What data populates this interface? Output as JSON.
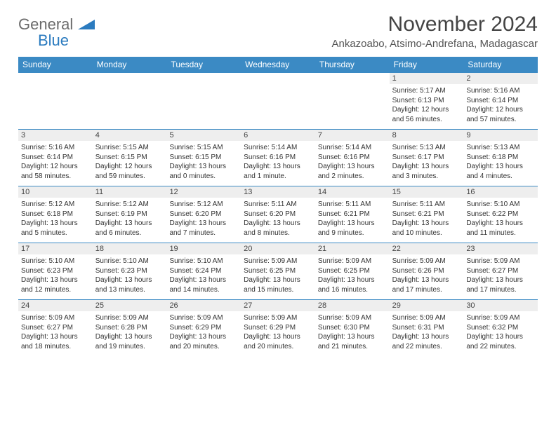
{
  "logo": {
    "text1": "General",
    "text2": "Blue"
  },
  "title": "November 2024",
  "location": "Ankazoabo, Atsimo-Andrefana, Madagascar",
  "weekdays": [
    "Sunday",
    "Monday",
    "Tuesday",
    "Wednesday",
    "Thursday",
    "Friday",
    "Saturday"
  ],
  "header_bg": "#3b8ac4",
  "weeks": [
    [
      null,
      null,
      null,
      null,
      null,
      {
        "n": "1",
        "sr": "5:17 AM",
        "ss": "6:13 PM",
        "d1": "Daylight: 12 hours",
        "d2": "and 56 minutes."
      },
      {
        "n": "2",
        "sr": "5:16 AM",
        "ss": "6:14 PM",
        "d1": "Daylight: 12 hours",
        "d2": "and 57 minutes."
      }
    ],
    [
      {
        "n": "3",
        "sr": "5:16 AM",
        "ss": "6:14 PM",
        "d1": "Daylight: 12 hours",
        "d2": "and 58 minutes."
      },
      {
        "n": "4",
        "sr": "5:15 AM",
        "ss": "6:15 PM",
        "d1": "Daylight: 12 hours",
        "d2": "and 59 minutes."
      },
      {
        "n": "5",
        "sr": "5:15 AM",
        "ss": "6:15 PM",
        "d1": "Daylight: 13 hours",
        "d2": "and 0 minutes."
      },
      {
        "n": "6",
        "sr": "5:14 AM",
        "ss": "6:16 PM",
        "d1": "Daylight: 13 hours",
        "d2": "and 1 minute."
      },
      {
        "n": "7",
        "sr": "5:14 AM",
        "ss": "6:16 PM",
        "d1": "Daylight: 13 hours",
        "d2": "and 2 minutes."
      },
      {
        "n": "8",
        "sr": "5:13 AM",
        "ss": "6:17 PM",
        "d1": "Daylight: 13 hours",
        "d2": "and 3 minutes."
      },
      {
        "n": "9",
        "sr": "5:13 AM",
        "ss": "6:18 PM",
        "d1": "Daylight: 13 hours",
        "d2": "and 4 minutes."
      }
    ],
    [
      {
        "n": "10",
        "sr": "5:12 AM",
        "ss": "6:18 PM",
        "d1": "Daylight: 13 hours",
        "d2": "and 5 minutes."
      },
      {
        "n": "11",
        "sr": "5:12 AM",
        "ss": "6:19 PM",
        "d1": "Daylight: 13 hours",
        "d2": "and 6 minutes."
      },
      {
        "n": "12",
        "sr": "5:12 AM",
        "ss": "6:20 PM",
        "d1": "Daylight: 13 hours",
        "d2": "and 7 minutes."
      },
      {
        "n": "13",
        "sr": "5:11 AM",
        "ss": "6:20 PM",
        "d1": "Daylight: 13 hours",
        "d2": "and 8 minutes."
      },
      {
        "n": "14",
        "sr": "5:11 AM",
        "ss": "6:21 PM",
        "d1": "Daylight: 13 hours",
        "d2": "and 9 minutes."
      },
      {
        "n": "15",
        "sr": "5:11 AM",
        "ss": "6:21 PM",
        "d1": "Daylight: 13 hours",
        "d2": "and 10 minutes."
      },
      {
        "n": "16",
        "sr": "5:10 AM",
        "ss": "6:22 PM",
        "d1": "Daylight: 13 hours",
        "d2": "and 11 minutes."
      }
    ],
    [
      {
        "n": "17",
        "sr": "5:10 AM",
        "ss": "6:23 PM",
        "d1": "Daylight: 13 hours",
        "d2": "and 12 minutes."
      },
      {
        "n": "18",
        "sr": "5:10 AM",
        "ss": "6:23 PM",
        "d1": "Daylight: 13 hours",
        "d2": "and 13 minutes."
      },
      {
        "n": "19",
        "sr": "5:10 AM",
        "ss": "6:24 PM",
        "d1": "Daylight: 13 hours",
        "d2": "and 14 minutes."
      },
      {
        "n": "20",
        "sr": "5:09 AM",
        "ss": "6:25 PM",
        "d1": "Daylight: 13 hours",
        "d2": "and 15 minutes."
      },
      {
        "n": "21",
        "sr": "5:09 AM",
        "ss": "6:25 PM",
        "d1": "Daylight: 13 hours",
        "d2": "and 16 minutes."
      },
      {
        "n": "22",
        "sr": "5:09 AM",
        "ss": "6:26 PM",
        "d1": "Daylight: 13 hours",
        "d2": "and 17 minutes."
      },
      {
        "n": "23",
        "sr": "5:09 AM",
        "ss": "6:27 PM",
        "d1": "Daylight: 13 hours",
        "d2": "and 17 minutes."
      }
    ],
    [
      {
        "n": "24",
        "sr": "5:09 AM",
        "ss": "6:27 PM",
        "d1": "Daylight: 13 hours",
        "d2": "and 18 minutes."
      },
      {
        "n": "25",
        "sr": "5:09 AM",
        "ss": "6:28 PM",
        "d1": "Daylight: 13 hours",
        "d2": "and 19 minutes."
      },
      {
        "n": "26",
        "sr": "5:09 AM",
        "ss": "6:29 PM",
        "d1": "Daylight: 13 hours",
        "d2": "and 20 minutes."
      },
      {
        "n": "27",
        "sr": "5:09 AM",
        "ss": "6:29 PM",
        "d1": "Daylight: 13 hours",
        "d2": "and 20 minutes."
      },
      {
        "n": "28",
        "sr": "5:09 AM",
        "ss": "6:30 PM",
        "d1": "Daylight: 13 hours",
        "d2": "and 21 minutes."
      },
      {
        "n": "29",
        "sr": "5:09 AM",
        "ss": "6:31 PM",
        "d1": "Daylight: 13 hours",
        "d2": "and 22 minutes."
      },
      {
        "n": "30",
        "sr": "5:09 AM",
        "ss": "6:32 PM",
        "d1": "Daylight: 13 hours",
        "d2": "and 22 minutes."
      }
    ]
  ]
}
